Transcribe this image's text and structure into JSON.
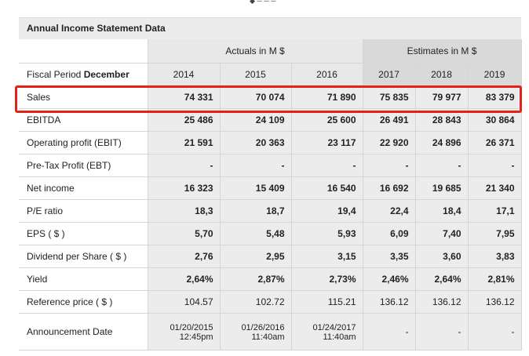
{
  "table": {
    "title": "Annual Income Statement Data",
    "groups": {
      "actuals": "Actuals in M $",
      "estimates": "Estimates in M $"
    },
    "period_label_prefix": "Fiscal Period",
    "period_label_month": "December",
    "years": [
      "2014",
      "2015",
      "2016",
      "2017",
      "2018",
      "2019"
    ],
    "rows": [
      {
        "label": "Sales",
        "values": [
          "74 331",
          "70 074",
          "71 890",
          "75 835",
          "79 977",
          "83 379"
        ]
      },
      {
        "label": "EBITDA",
        "values": [
          "25 486",
          "24 109",
          "25 600",
          "26 491",
          "28 843",
          "30 864"
        ]
      },
      {
        "label": "Operating profit (EBIT)",
        "values": [
          "21 591",
          "20 363",
          "23 117",
          "22 920",
          "24 896",
          "26 371"
        ]
      },
      {
        "label": "Pre-Tax Profit (EBT)",
        "values": [
          "-",
          "-",
          "-",
          "-",
          "-",
          "-"
        ]
      },
      {
        "label": "Net income",
        "values": [
          "16 323",
          "15 409",
          "16 540",
          "16 692",
          "19 685",
          "21 340"
        ]
      },
      {
        "label": "P/E ratio",
        "values": [
          "18,3",
          "18,7",
          "19,4",
          "22,4",
          "18,4",
          "17,1"
        ]
      },
      {
        "label": "EPS ( $ )",
        "values": [
          "5,70",
          "5,48",
          "5,93",
          "6,09",
          "7,40",
          "7,95"
        ]
      },
      {
        "label": "Dividend per Share ( $ )",
        "values": [
          "2,76",
          "2,95",
          "3,15",
          "3,35",
          "3,60",
          "3,83"
        ]
      },
      {
        "label": "Yield",
        "values": [
          "2,64%",
          "2,87%",
          "2,73%",
          "2,46%",
          "2,64%",
          "2,81%"
        ]
      },
      {
        "label": "Reference price ( $ )",
        "values": [
          "104.57",
          "102.72",
          "115.21",
          "136.12",
          "136.12",
          "136.12"
        ]
      }
    ],
    "announcement": {
      "label": "Announcement Date",
      "dates": [
        {
          "date": "01/20/2015",
          "time": "12:45pm"
        },
        {
          "date": "01/26/2016",
          "time": "11:40am"
        },
        {
          "date": "01/24/2017",
          "time": "11:40am"
        }
      ],
      "estimates": [
        "-",
        "-",
        "-"
      ]
    }
  },
  "highlight_color": "#e0231c"
}
